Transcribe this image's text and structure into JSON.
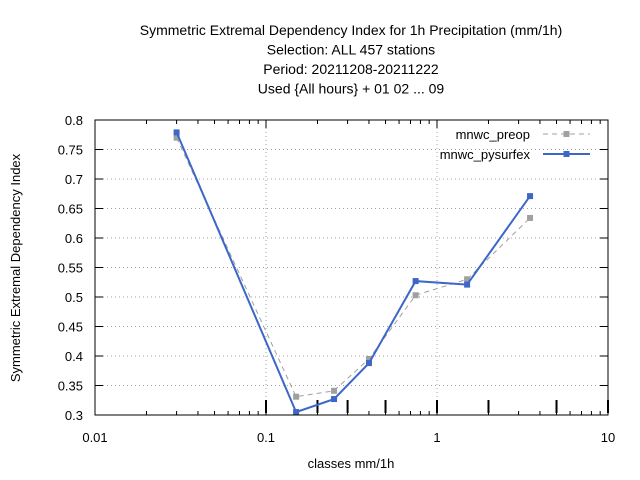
{
  "chart_data": {
    "type": "line",
    "title_lines": [
      "Symmetric Extremal Dependency Index  for 1h Precipitation (mm/1h)",
      "Selection: ALL     457 stations",
      "Period: 20211208-20211222",
      "Used {All hours} + 01 02 ... 09"
    ],
    "xlabel": "classes mm/1h",
    "ylabel": "Symmetric Extremal Dependency Index",
    "x_scale": "log",
    "xlim": [
      0.01,
      10
    ],
    "ylim": [
      0.3,
      0.8
    ],
    "x_ticks": [
      0.01,
      0.1,
      1,
      10
    ],
    "x_tick_labels": [
      "0.01",
      "0.1",
      "1",
      "10"
    ],
    "y_ticks": [
      0.3,
      0.35,
      0.4,
      0.45,
      0.5,
      0.55,
      0.6,
      0.65,
      0.7,
      0.75,
      0.8
    ],
    "y_tick_labels": [
      "0.3",
      "0.35",
      "0.4",
      "0.45",
      "0.5",
      "0.55",
      "0.6",
      "0.65",
      "0.7",
      "0.75",
      "0.8"
    ],
    "class_ticks": [
      0.1,
      0.2,
      0.3,
      0.5,
      1,
      2,
      5,
      10
    ],
    "grid": true,
    "legend_position": "top-right",
    "series": [
      {
        "name": "mnwc_preop",
        "color": "#a0a0a0",
        "dash": true,
        "x": [
          0.03,
          0.15,
          0.25,
          0.4,
          0.75,
          1.5,
          3.5
        ],
        "y": [
          0.77,
          0.331,
          0.341,
          0.395,
          0.503,
          0.53,
          0.634
        ]
      },
      {
        "name": "mnwc_pysurfex",
        "color": "#3d67c7",
        "dash": false,
        "x": [
          0.03,
          0.15,
          0.25,
          0.4,
          0.75,
          1.5,
          3.5
        ],
        "y": [
          0.779,
          0.305,
          0.327,
          0.388,
          0.527,
          0.521,
          0.671
        ]
      }
    ]
  }
}
